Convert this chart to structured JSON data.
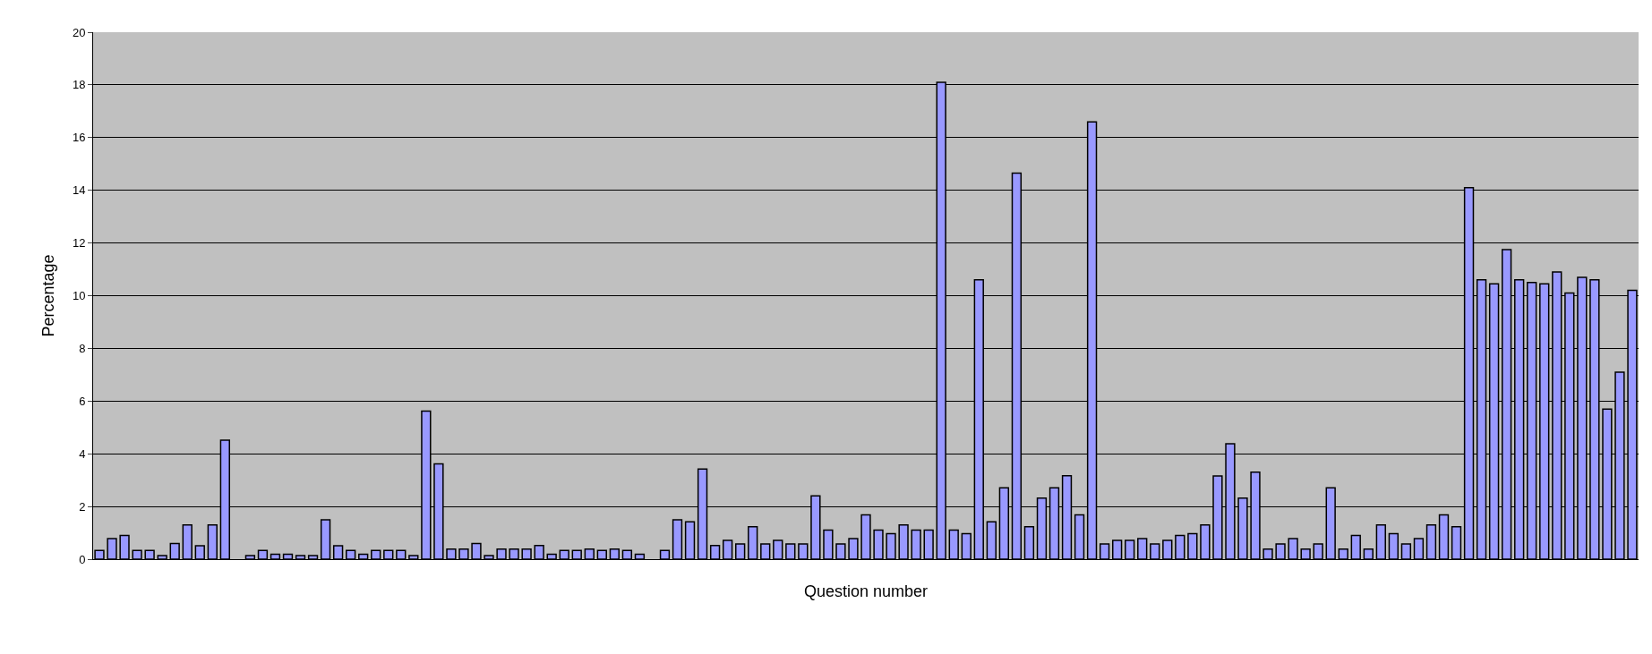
{
  "chart_data": {
    "type": "bar",
    "xlabel": "Question number",
    "ylabel": "Percentage",
    "categories": [
      null,
      null,
      null,
      null,
      null,
      null,
      null,
      null,
      null,
      null,
      null,
      null,
      null,
      null,
      null,
      null,
      null,
      null,
      null,
      null,
      null,
      null,
      null,
      null,
      null,
      null,
      null,
      null,
      null,
      null,
      null,
      null,
      null,
      null,
      null,
      null,
      null,
      null,
      null,
      null,
      null,
      null,
      null,
      null,
      null,
      null,
      null,
      null,
      null,
      null,
      null,
      null,
      null,
      null,
      null,
      null,
      null,
      null,
      null,
      null,
      null,
      null,
      null,
      null,
      null,
      null,
      null,
      null,
      null,
      null,
      null,
      null,
      null,
      null,
      null,
      null,
      null,
      null,
      null,
      null,
      null,
      null,
      null,
      null,
      null,
      null,
      null,
      null,
      null,
      null,
      null,
      null,
      null,
      null,
      null,
      null,
      null,
      null,
      null,
      null,
      null,
      null,
      null,
      null,
      null,
      null,
      null,
      null,
      null,
      null,
      null,
      null,
      null,
      null,
      null,
      null,
      null,
      null,
      null,
      null,
      null,
      null,
      null
    ],
    "values": [
      0.33,
      0.78,
      0.9,
      0.33,
      0.33,
      0.14,
      0.59,
      1.3,
      0.51,
      1.3,
      4.52,
      0,
      0.14,
      0.33,
      0.19,
      0.19,
      0.14,
      0.14,
      1.49,
      0.51,
      0.33,
      0.19,
      0.33,
      0.33,
      0.33,
      0.14,
      5.62,
      3.62,
      0.38,
      0.38,
      0.59,
      0.14,
      0.38,
      0.38,
      0.38,
      0.52,
      0.19,
      0.33,
      0.33,
      0.38,
      0.33,
      0.38,
      0.33,
      0.19,
      0,
      0.33,
      1.49,
      1.42,
      3.42,
      0.52,
      0.71,
      0.58,
      1.23,
      0.58,
      0.71,
      0.58,
      0.58,
      2.4,
      1.1,
      0.58,
      0.78,
      1.68,
      1.1,
      0.97,
      1.3,
      1.1,
      1.1,
      18.1,
      1.1,
      0.97,
      10.6,
      1.42,
      2.71,
      14.65,
      1.23,
      2.32,
      2.71,
      3.17,
      1.68,
      16.6,
      0.58,
      0.71,
      0.71,
      0.78,
      0.58,
      0.71,
      0.9,
      0.97,
      1.3,
      3.16,
      4.38,
      2.32,
      3.3,
      0.38,
      0.58,
      0.78,
      0.38,
      0.58,
      2.71,
      0.38,
      0.9,
      0.38,
      1.3,
      0.97,
      0.58,
      0.78,
      1.3,
      1.68,
      1.23,
      14.1,
      10.6,
      10.45,
      11.75,
      10.6,
      10.5,
      10.45,
      10.9,
      10.1,
      10.7,
      10.6,
      5.7,
      7.1,
      10.2
    ],
    "color": "#9999ff",
    "ylim": [
      0,
      20
    ],
    "yticks": [
      0,
      2,
      4,
      6,
      8,
      10,
      12,
      14,
      16,
      18,
      20
    ],
    "grid": "y",
    "tick_labels": "y"
  }
}
